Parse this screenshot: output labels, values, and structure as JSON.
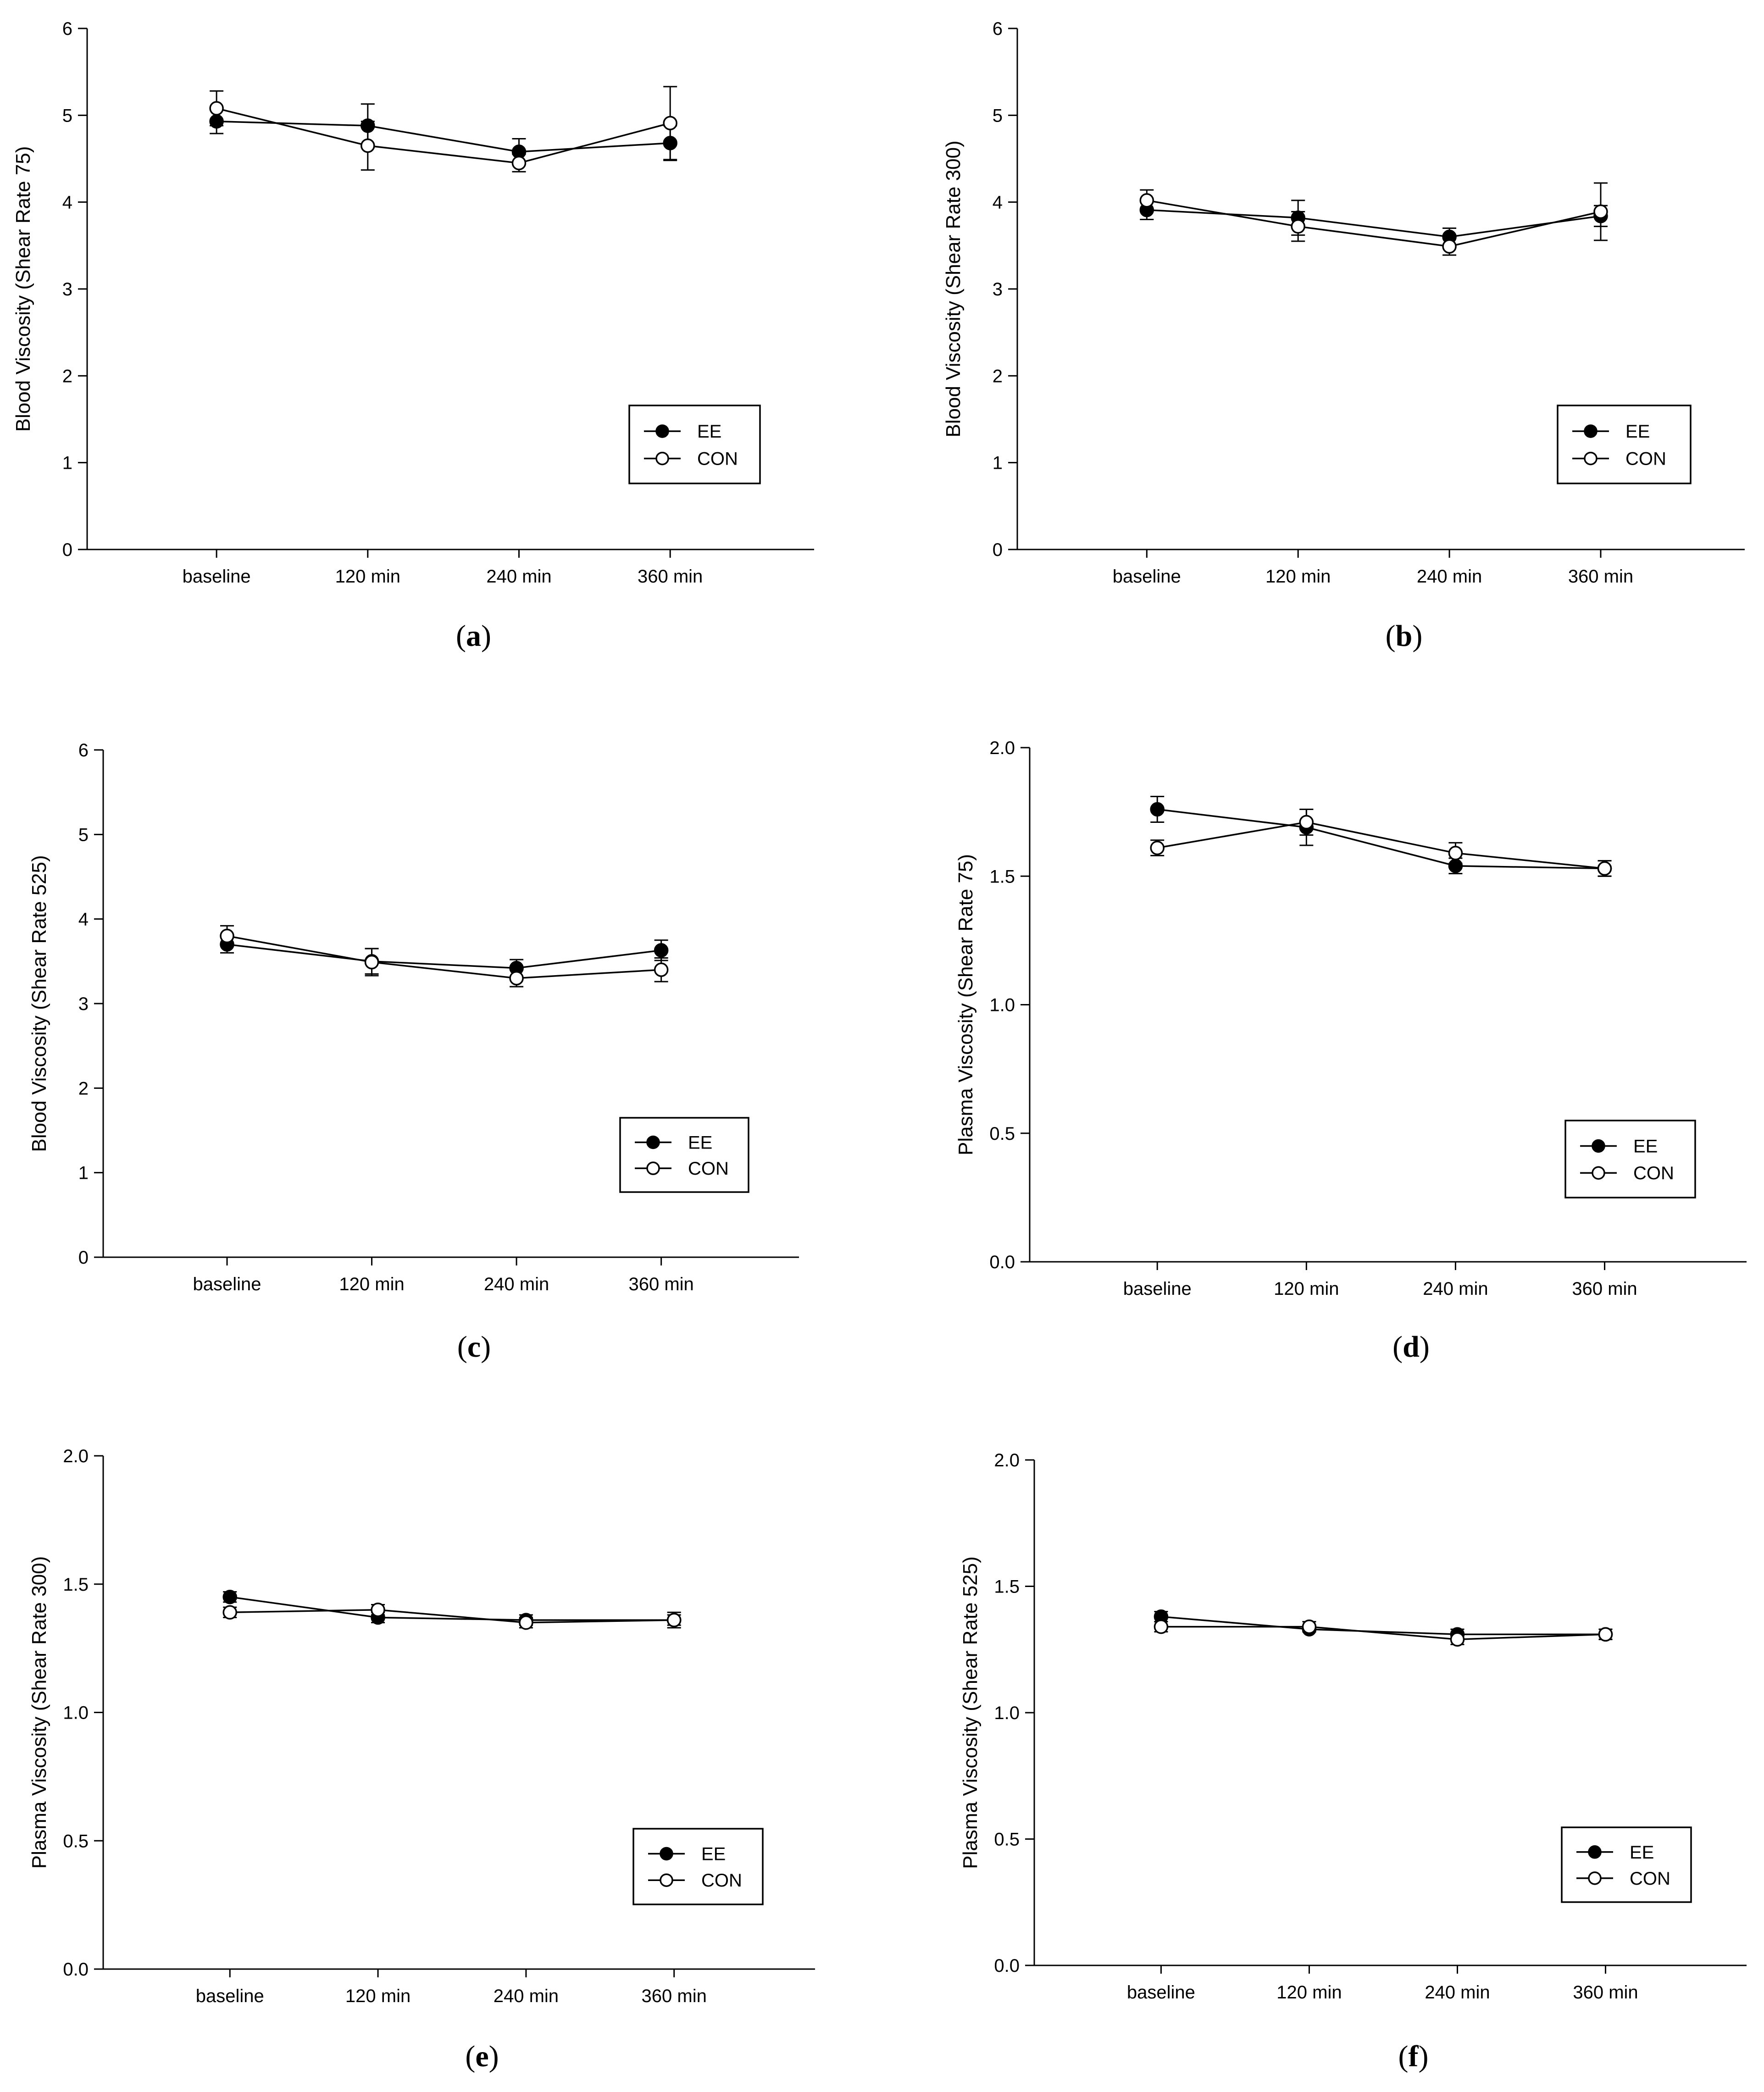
{
  "figure": {
    "background": "#ffffff",
    "ink": "#000000"
  },
  "chart_data": [
    {
      "panel_label": "a",
      "type": "line",
      "title": "",
      "xlabel": "",
      "ylabel": "Blood Viscosity (Shear Rate 75)",
      "categories": [
        "baseline",
        "120 min",
        "240 min",
        "360 min"
      ],
      "ylim": [
        0,
        6
      ],
      "yticks": [
        0,
        1,
        2,
        3,
        4,
        5,
        6
      ],
      "ytick_labels": [
        "0",
        "1",
        "2",
        "3",
        "4",
        "5",
        "6"
      ],
      "grid": false,
      "legend": "right-middle",
      "series": [
        {
          "name": "EE",
          "marker": "filled-circle",
          "values": [
            4.93,
            4.88,
            4.58,
            4.68
          ],
          "err": [
            0.14,
            0.25,
            0.15,
            0.2
          ]
        },
        {
          "name": "CON",
          "marker": "open-circle",
          "values": [
            5.08,
            4.65,
            4.45,
            4.91
          ],
          "err": [
            0.2,
            0.28,
            0.1,
            0.42
          ]
        }
      ]
    },
    {
      "panel_label": "b",
      "type": "line",
      "title": "",
      "xlabel": "",
      "ylabel": "Blood Viscosity (Shear Rate 300)",
      "categories": [
        "baseline",
        "120 min",
        "240 min",
        "360 min"
      ],
      "ylim": [
        0,
        6
      ],
      "yticks": [
        0,
        1,
        2,
        3,
        4,
        5,
        6
      ],
      "ytick_labels": [
        "0",
        "1",
        "2",
        "3",
        "4",
        "5",
        "6"
      ],
      "grid": false,
      "legend": "right-middle",
      "series": [
        {
          "name": "EE",
          "marker": "filled-circle",
          "values": [
            3.91,
            3.82,
            3.6,
            3.84
          ],
          "err": [
            0.11,
            0.2,
            0.1,
            0.12
          ]
        },
        {
          "name": "CON",
          "marker": "open-circle",
          "values": [
            4.02,
            3.72,
            3.49,
            3.89
          ],
          "err": [
            0.12,
            0.17,
            0.1,
            0.33
          ]
        }
      ]
    },
    {
      "panel_label": "c",
      "type": "line",
      "title": "",
      "xlabel": "",
      "ylabel": "Blood Viscosity (Shear Rate 525)",
      "categories": [
        "baseline",
        "120 min",
        "240 min",
        "360 min"
      ],
      "ylim": [
        0,
        6
      ],
      "yticks": [
        0,
        1,
        2,
        3,
        4,
        5,
        6
      ],
      "ytick_labels": [
        "0",
        "1",
        "2",
        "3",
        "4",
        "5",
        "6"
      ],
      "grid": false,
      "legend": "right-middle",
      "series": [
        {
          "name": "EE",
          "marker": "filled-circle",
          "values": [
            3.7,
            3.5,
            3.42,
            3.63
          ],
          "err": [
            0.1,
            0.15,
            0.1,
            0.12
          ]
        },
        {
          "name": "CON",
          "marker": "open-circle",
          "values": [
            3.8,
            3.49,
            3.3,
            3.4
          ],
          "err": [
            0.12,
            0.16,
            0.1,
            0.14
          ]
        }
      ]
    },
    {
      "panel_label": "d",
      "type": "line",
      "title": "",
      "xlabel": "",
      "ylabel": "Plasma Viscosity (Shear Rate 75)",
      "categories": [
        "baseline",
        "120 min",
        "240 min",
        "360 min"
      ],
      "ylim": [
        0,
        2
      ],
      "yticks": [
        0,
        0.5,
        1,
        1.5,
        2
      ],
      "ytick_labels": [
        "0.0",
        "0.5",
        "1.0",
        "1.5",
        "2.0"
      ],
      "grid": false,
      "legend": "right-middle",
      "series": [
        {
          "name": "EE",
          "marker": "filled-circle",
          "values": [
            1.76,
            1.69,
            1.54,
            1.53
          ],
          "err": [
            0.05,
            0.07,
            0.03,
            0.03
          ]
        },
        {
          "name": "CON",
          "marker": "open-circle",
          "values": [
            1.61,
            1.71,
            1.59,
            1.53
          ],
          "err": [
            0.03,
            0.05,
            0.04,
            0.03
          ]
        }
      ]
    },
    {
      "panel_label": "e",
      "type": "line",
      "title": "",
      "xlabel": "",
      "ylabel": "Plasma Viscosity (Shear Rate 300)",
      "categories": [
        "baseline",
        "120 min",
        "240 min",
        "360 min"
      ],
      "ylim": [
        0,
        2
      ],
      "yticks": [
        0,
        0.5,
        1,
        1.5,
        2
      ],
      "ytick_labels": [
        "0.0",
        "0.5",
        "1.0",
        "1.5",
        "2.0"
      ],
      "grid": false,
      "legend": "right-bottom",
      "series": [
        {
          "name": "EE",
          "marker": "filled-circle",
          "values": [
            1.45,
            1.37,
            1.36,
            1.36
          ],
          "err": [
            0.02,
            0.02,
            0.02,
            0.03
          ]
        },
        {
          "name": "CON",
          "marker": "open-circle",
          "values": [
            1.39,
            1.4,
            1.35,
            1.36
          ],
          "err": [
            0.02,
            0.02,
            0.02,
            0.02
          ]
        }
      ]
    },
    {
      "panel_label": "f",
      "type": "line",
      "title": "",
      "xlabel": "",
      "ylabel": "Plasma Viscosity (Shear Rate 525)",
      "categories": [
        "baseline",
        "120 min",
        "240 min",
        "360 min"
      ],
      "ylim": [
        0,
        2
      ],
      "yticks": [
        0,
        0.5,
        1,
        1.5,
        2
      ],
      "ytick_labels": [
        "0.0",
        "0.5",
        "1.0",
        "1.5",
        "2.0"
      ],
      "grid": false,
      "legend": "right-bottom",
      "series": [
        {
          "name": "EE",
          "marker": "filled-circle",
          "values": [
            1.38,
            1.33,
            1.31,
            1.31
          ],
          "err": [
            0.02,
            0.01,
            0.02,
            0.02
          ]
        },
        {
          "name": "CON",
          "marker": "open-circle",
          "values": [
            1.34,
            1.34,
            1.29,
            1.31
          ],
          "err": [
            0.02,
            0.02,
            0.02,
            0.02
          ]
        }
      ]
    }
  ]
}
